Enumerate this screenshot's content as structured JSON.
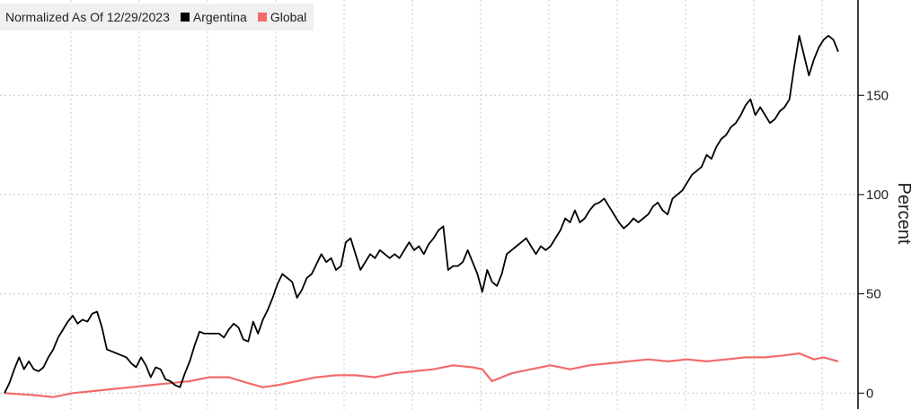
{
  "chart_data": {
    "type": "line",
    "title": "Normalized As Of 12/29/2023",
    "ylabel": "Percent",
    "xlabel": "",
    "ylim": [
      -8,
      198
    ],
    "yticks": [
      0,
      50,
      100,
      150
    ],
    "grid": true,
    "legend_position": "top-left",
    "series": [
      {
        "name": "Argentina",
        "color": "#000000",
        "points": [
          [
            0,
            0
          ],
          [
            1,
            5
          ],
          [
            2,
            12
          ],
          [
            3,
            18
          ],
          [
            4,
            12
          ],
          [
            5,
            16
          ],
          [
            6,
            12
          ],
          [
            7,
            11
          ],
          [
            8,
            13
          ],
          [
            9,
            18
          ],
          [
            10,
            22
          ],
          [
            11,
            28
          ],
          [
            12,
            32
          ],
          [
            13,
            36
          ],
          [
            14,
            39
          ],
          [
            15,
            35
          ],
          [
            16,
            37
          ],
          [
            17,
            36
          ],
          [
            18,
            40
          ],
          [
            19,
            41
          ],
          [
            20,
            33
          ],
          [
            21,
            22
          ],
          [
            22,
            21
          ],
          [
            23,
            20
          ],
          [
            24,
            19
          ],
          [
            25,
            18
          ],
          [
            26,
            15
          ],
          [
            27,
            13
          ],
          [
            28,
            18
          ],
          [
            29,
            14
          ],
          [
            30,
            8
          ],
          [
            31,
            13
          ],
          [
            32,
            12
          ],
          [
            33,
            7
          ],
          [
            34,
            6
          ],
          [
            35,
            4
          ],
          [
            36,
            3
          ],
          [
            37,
            10
          ],
          [
            38,
            16
          ],
          [
            39,
            24
          ],
          [
            40,
            31
          ],
          [
            41,
            30
          ],
          [
            42,
            30
          ],
          [
            43,
            30
          ],
          [
            44,
            30
          ],
          [
            45,
            28
          ],
          [
            46,
            32
          ],
          [
            47,
            35
          ],
          [
            48,
            33
          ],
          [
            49,
            27
          ],
          [
            50,
            26
          ],
          [
            51,
            36
          ],
          [
            52,
            30
          ],
          [
            53,
            37
          ],
          [
            54,
            42
          ],
          [
            55,
            48
          ],
          [
            56,
            55
          ],
          [
            57,
            60
          ],
          [
            58,
            58
          ],
          [
            59,
            56
          ],
          [
            60,
            48
          ],
          [
            61,
            52
          ],
          [
            62,
            58
          ],
          [
            63,
            60
          ],
          [
            64,
            65
          ],
          [
            65,
            70
          ],
          [
            66,
            66
          ],
          [
            67,
            68
          ],
          [
            68,
            62
          ],
          [
            69,
            64
          ],
          [
            70,
            76
          ],
          [
            71,
            78
          ],
          [
            72,
            70
          ],
          [
            73,
            62
          ],
          [
            74,
            66
          ],
          [
            75,
            70
          ],
          [
            76,
            68
          ],
          [
            77,
            72
          ],
          [
            78,
            70
          ],
          [
            79,
            68
          ],
          [
            80,
            70
          ],
          [
            81,
            68
          ],
          [
            82,
            72
          ],
          [
            83,
            76
          ],
          [
            84,
            72
          ],
          [
            85,
            74
          ],
          [
            86,
            70
          ],
          [
            87,
            75
          ],
          [
            88,
            78
          ],
          [
            89,
            82
          ],
          [
            90,
            84
          ],
          [
            91,
            62
          ],
          [
            92,
            64
          ],
          [
            93,
            64
          ],
          [
            94,
            66
          ],
          [
            95,
            72
          ],
          [
            96,
            66
          ],
          [
            97,
            60
          ],
          [
            98,
            51
          ],
          [
            99,
            62
          ],
          [
            100,
            56
          ],
          [
            101,
            54
          ],
          [
            102,
            60
          ],
          [
            103,
            70
          ],
          [
            104,
            72
          ],
          [
            105,
            74
          ],
          [
            106,
            76
          ],
          [
            107,
            78
          ],
          [
            108,
            74
          ],
          [
            109,
            70
          ],
          [
            110,
            74
          ],
          [
            111,
            72
          ],
          [
            112,
            74
          ],
          [
            113,
            78
          ],
          [
            114,
            82
          ],
          [
            115,
            88
          ],
          [
            116,
            86
          ],
          [
            117,
            92
          ],
          [
            118,
            86
          ],
          [
            119,
            88
          ],
          [
            120,
            92
          ],
          [
            121,
            95
          ],
          [
            122,
            96
          ],
          [
            123,
            98
          ],
          [
            124,
            94
          ],
          [
            125,
            90
          ],
          [
            126,
            86
          ],
          [
            127,
            83
          ],
          [
            128,
            85
          ],
          [
            129,
            88
          ],
          [
            130,
            86
          ],
          [
            131,
            88
          ],
          [
            132,
            90
          ],
          [
            133,
            94
          ],
          [
            134,
            96
          ],
          [
            135,
            92
          ],
          [
            136,
            90
          ],
          [
            137,
            98
          ],
          [
            138,
            100
          ],
          [
            139,
            102
          ],
          [
            140,
            106
          ],
          [
            141,
            110
          ],
          [
            142,
            112
          ],
          [
            143,
            114
          ],
          [
            144,
            120
          ],
          [
            145,
            118
          ],
          [
            146,
            124
          ],
          [
            147,
            128
          ],
          [
            148,
            130
          ],
          [
            149,
            134
          ],
          [
            150,
            136
          ],
          [
            151,
            140
          ],
          [
            152,
            145
          ],
          [
            153,
            148
          ],
          [
            154,
            140
          ],
          [
            155,
            144
          ],
          [
            156,
            140
          ],
          [
            157,
            136
          ],
          [
            158,
            138
          ],
          [
            159,
            142
          ],
          [
            160,
            144
          ],
          [
            161,
            148
          ],
          [
            162,
            165
          ],
          [
            163,
            180
          ],
          [
            164,
            170
          ],
          [
            165,
            160
          ],
          [
            166,
            168
          ],
          [
            167,
            174
          ],
          [
            168,
            178
          ],
          [
            169,
            180
          ],
          [
            170,
            178
          ],
          [
            171,
            172
          ]
        ]
      },
      {
        "name": "Global",
        "color": "#f26b6b",
        "points": [
          [
            0,
            0
          ],
          [
            6,
            -1
          ],
          [
            10,
            -2
          ],
          [
            14,
            0
          ],
          [
            18,
            1
          ],
          [
            22,
            2
          ],
          [
            26,
            3
          ],
          [
            30,
            4
          ],
          [
            34,
            5
          ],
          [
            38,
            6
          ],
          [
            42,
            8
          ],
          [
            46,
            8
          ],
          [
            50,
            5
          ],
          [
            53,
            3
          ],
          [
            56,
            4
          ],
          [
            60,
            6
          ],
          [
            64,
            8
          ],
          [
            68,
            9
          ],
          [
            72,
            9
          ],
          [
            76,
            8
          ],
          [
            80,
            10
          ],
          [
            84,
            11
          ],
          [
            88,
            12
          ],
          [
            92,
            14
          ],
          [
            96,
            13
          ],
          [
            98,
            12
          ],
          [
            100,
            6
          ],
          [
            102,
            8
          ],
          [
            104,
            10
          ],
          [
            108,
            12
          ],
          [
            112,
            14
          ],
          [
            116,
            12
          ],
          [
            120,
            14
          ],
          [
            124,
            15
          ],
          [
            128,
            16
          ],
          [
            132,
            17
          ],
          [
            136,
            16
          ],
          [
            140,
            17
          ],
          [
            144,
            16
          ],
          [
            148,
            17
          ],
          [
            152,
            18
          ],
          [
            156,
            18
          ],
          [
            160,
            19
          ],
          [
            163,
            20
          ],
          [
            166,
            17
          ],
          [
            168,
            18
          ],
          [
            171,
            16
          ]
        ]
      }
    ]
  }
}
